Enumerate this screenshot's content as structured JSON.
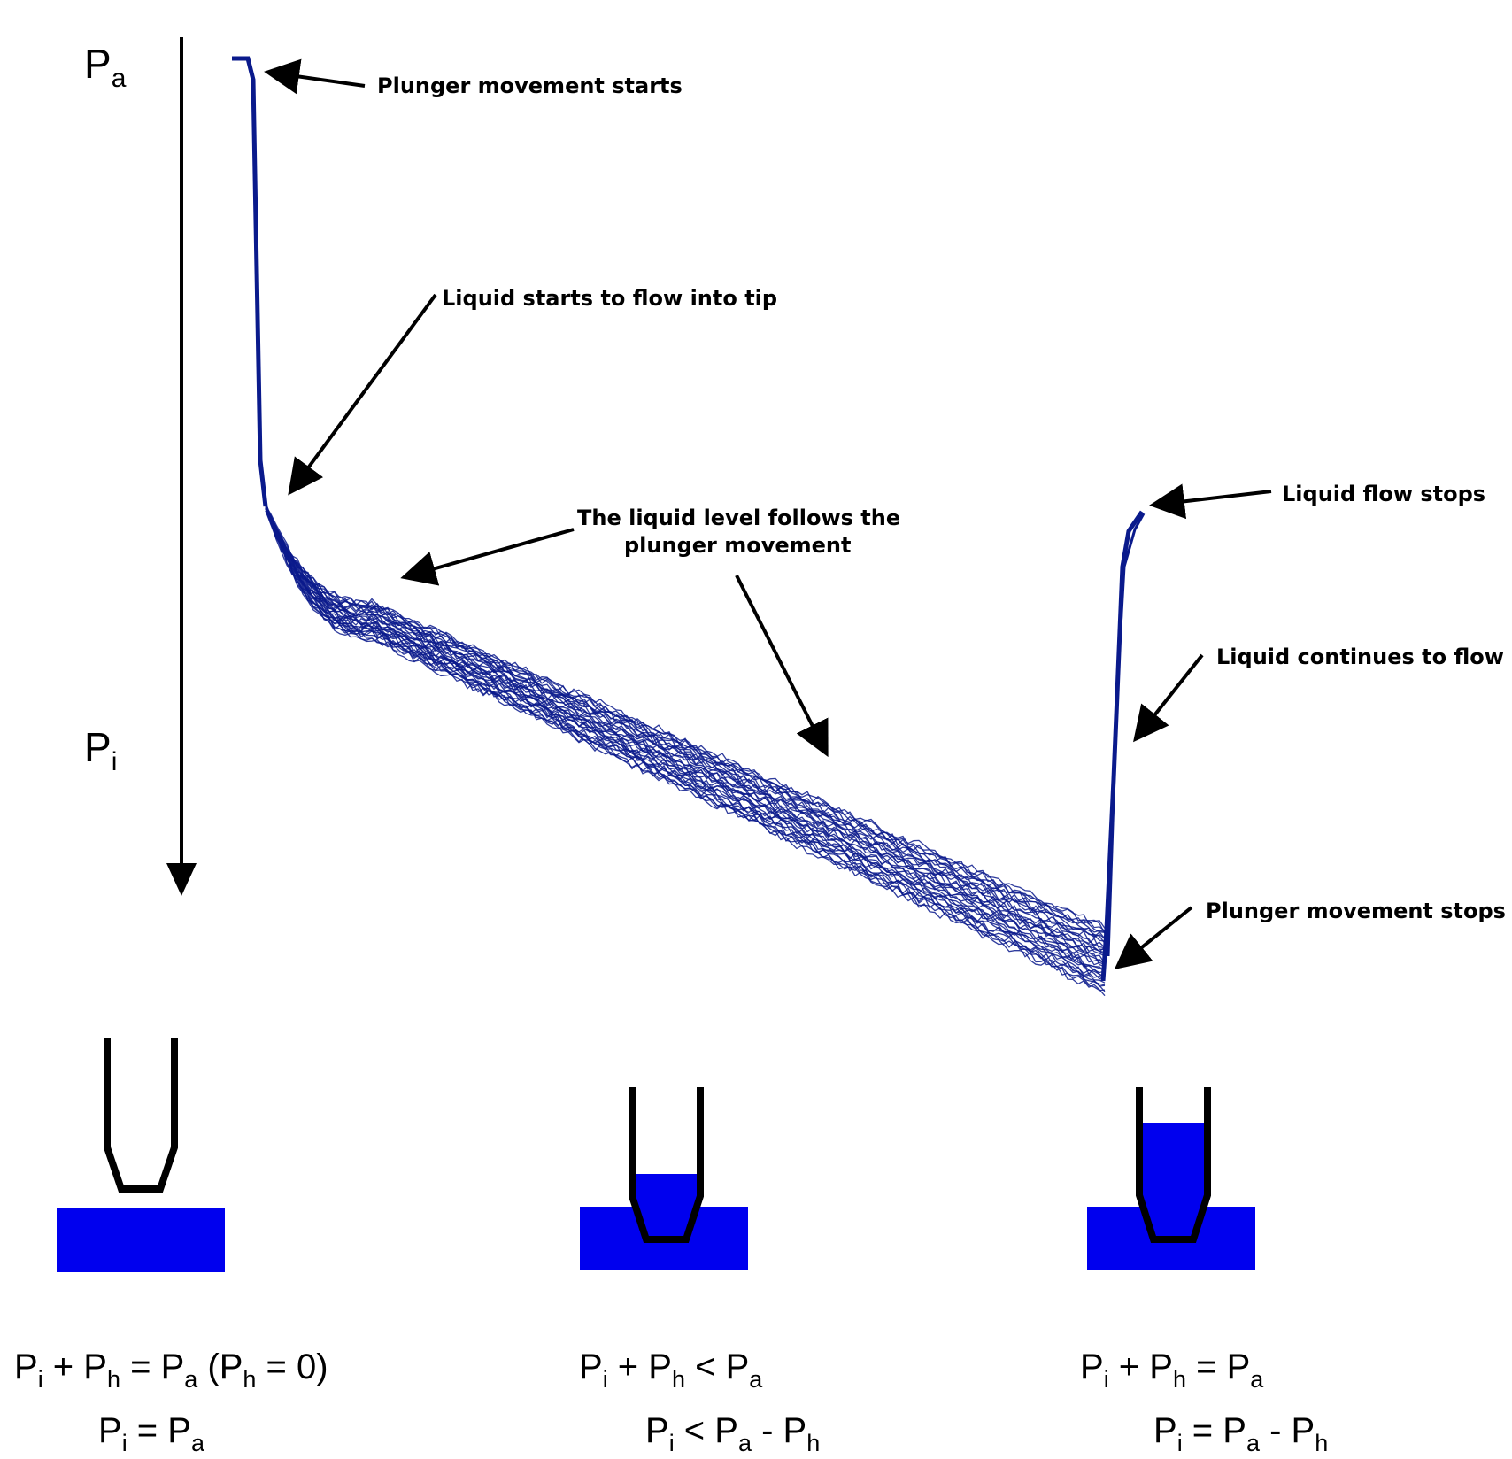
{
  "axis": {
    "top_label": {
      "base": "P",
      "sub": "a"
    },
    "mid_label": {
      "base": "P",
      "sub": "i"
    }
  },
  "annotations": {
    "plunger_starts": "Plunger movement starts",
    "liquid_starts": "Liquid starts to flow into tip",
    "liquid_follows_line1": "The liquid level follows the",
    "liquid_follows_line2": "plunger movement",
    "flow_stops": "Liquid  flow stops",
    "continues": "Liquid continues to flow",
    "plunger_stops": "Plunger movement stops"
  },
  "colors": {
    "trace": "#0a1a8c",
    "liquid": "#0000ee",
    "ink": "#000000"
  },
  "stages": [
    {
      "eq1": [
        {
          "t": "P"
        },
        {
          "s": "i"
        },
        {
          "t": " + P"
        },
        {
          "s": "h"
        },
        {
          "t": " = P"
        },
        {
          "s": "a"
        },
        {
          "t": " (P"
        },
        {
          "s": "h"
        },
        {
          "t": " = 0)"
        }
      ],
      "eq2": [
        {
          "t": "P"
        },
        {
          "s": "i"
        },
        {
          "t": " = P"
        },
        {
          "s": "a"
        }
      ]
    },
    {
      "eq1": [
        {
          "t": "P"
        },
        {
          "s": "i"
        },
        {
          "t": " + P"
        },
        {
          "s": "h"
        },
        {
          "t": " < P"
        },
        {
          "s": "a"
        }
      ],
      "eq2": [
        {
          "t": "P"
        },
        {
          "s": "i"
        },
        {
          "t": "  < P"
        },
        {
          "s": "a"
        },
        {
          "t": "  - P"
        },
        {
          "s": "h"
        }
      ]
    },
    {
      "eq1": [
        {
          "t": "P"
        },
        {
          "s": "i"
        },
        {
          "t": " + P"
        },
        {
          "s": "h"
        },
        {
          "t": " = P"
        },
        {
          "s": "a"
        }
      ],
      "eq2": [
        {
          "t": "P"
        },
        {
          "s": "i"
        },
        {
          "t": "  = P"
        },
        {
          "s": "a"
        },
        {
          "t": "  - P"
        },
        {
          "s": "h"
        }
      ]
    }
  ]
}
